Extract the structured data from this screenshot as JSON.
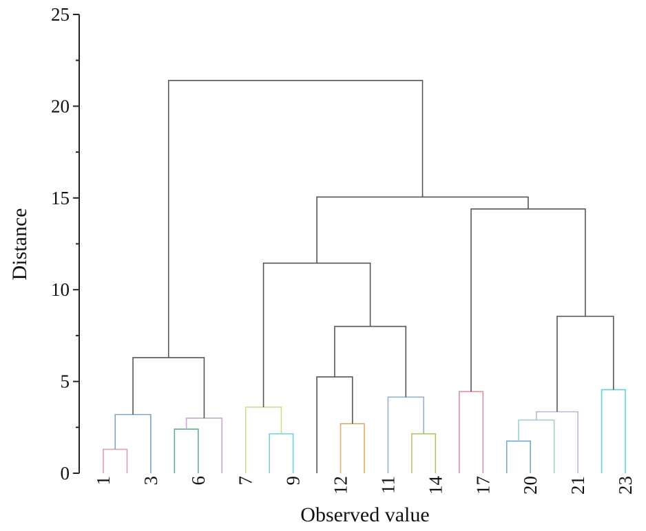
{
  "chart_data": {
    "type": "dendrogram",
    "title": "",
    "xlabel": "Observed value",
    "ylabel": "Distance",
    "ylim": [
      0,
      25
    ],
    "yticks": [
      0,
      5,
      10,
      15,
      20,
      25
    ],
    "minor_tick_step": 2.5,
    "grid": false,
    "leaf_count": 23,
    "leaf_labels": [
      "1",
      null,
      "3",
      null,
      "6",
      null,
      "7",
      null,
      "9",
      null,
      "12",
      null,
      "11",
      null,
      "14",
      null,
      "17",
      null,
      "20",
      null,
      "21",
      null,
      "23"
    ],
    "link_color_default": "#555555",
    "merges": [
      {
        "id": "A",
        "left": 0,
        "right": 1,
        "height": 1.3,
        "color": "#e0a0a8"
      },
      {
        "id": "B",
        "left": "A",
        "right": 2,
        "height": 3.2,
        "color": "#7aa6c8"
      },
      {
        "id": "C",
        "left": 3,
        "right": 4,
        "height": 2.4,
        "color": "#5fae8e"
      },
      {
        "id": "D",
        "left": "C",
        "right": 5,
        "height": 3.0,
        "color": "#c8a8d0"
      },
      {
        "id": "E",
        "left": "B",
        "right": "D",
        "height": 6.3,
        "color": "#555555"
      },
      {
        "id": "F",
        "left": 7,
        "right": 8,
        "height": 2.15,
        "color": "#6fd0e0"
      },
      {
        "id": "G",
        "left": 6,
        "right": "F",
        "height": 3.6,
        "color": "#d8d890"
      },
      {
        "id": "H",
        "left": 10,
        "right": 11,
        "height": 2.7,
        "color": "#d8b070"
      },
      {
        "id": "I",
        "left": 9,
        "right": "H",
        "height": 5.25,
        "color": "#555555"
      },
      {
        "id": "J",
        "left": 13,
        "right": 14,
        "height": 2.15,
        "color": "#a8c860"
      },
      {
        "id": "K",
        "left": 12,
        "right": "J",
        "height": 4.15,
        "color": "#9ab0c8"
      },
      {
        "id": "L",
        "left": "I",
        "right": "K",
        "height": 8.0,
        "color": "#555555"
      },
      {
        "id": "M",
        "left": "G",
        "right": "L",
        "height": 11.45,
        "color": "#555555"
      },
      {
        "id": "N",
        "left": 15,
        "right": 16,
        "height": 4.45,
        "color": "#e09098"
      },
      {
        "id": "O",
        "left": 17,
        "right": 18,
        "height": 1.75,
        "color": "#7aa6c8"
      },
      {
        "id": "P",
        "left": "O",
        "right": 19,
        "height": 2.9,
        "color": "#9ed0d0"
      },
      {
        "id": "Q",
        "left": "P",
        "right": 20,
        "height": 3.35,
        "color": "#c8b0d8"
      },
      {
        "id": "R",
        "left": 21,
        "right": 22,
        "height": 4.55,
        "color": "#60d0dc"
      },
      {
        "id": "S",
        "left": "Q",
        "right": "R",
        "height": 8.55,
        "color": "#555555"
      },
      {
        "id": "T",
        "left": "N",
        "right": "S",
        "height": 14.4,
        "color": "#555555"
      },
      {
        "id": "U",
        "left": "M",
        "right": "T",
        "height": 15.05,
        "color": "#555555"
      },
      {
        "id": "V",
        "left": "E",
        "right": "U",
        "height": 21.4,
        "color": "#555555"
      }
    ]
  }
}
